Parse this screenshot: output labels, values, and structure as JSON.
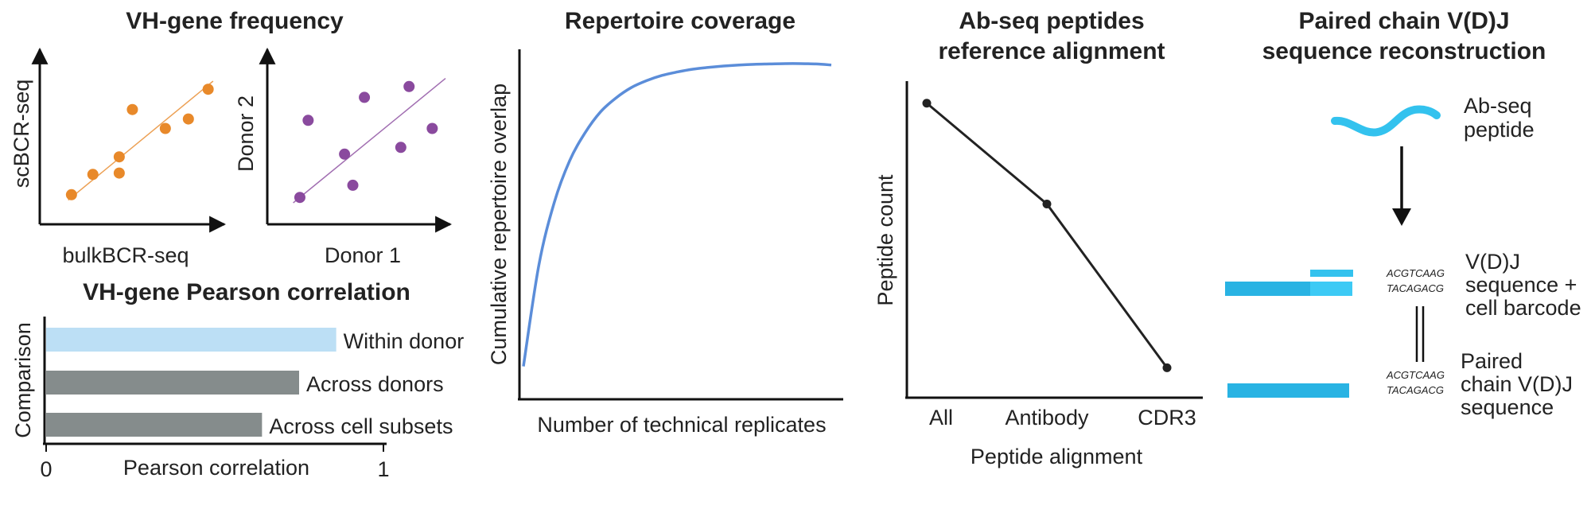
{
  "chart_data": [
    {
      "type": "scatter",
      "panel_title": "VH-gene frequency",
      "xlabel": "bulkBCR-seq",
      "ylabel": "scBCR-seq",
      "color": "#e8892a",
      "points": [
        [
          0.12,
          0.06
        ],
        [
          0.25,
          0.21
        ],
        [
          0.41,
          0.22
        ],
        [
          0.41,
          0.34
        ],
        [
          0.49,
          0.69
        ],
        [
          0.69,
          0.55
        ],
        [
          0.83,
          0.62
        ],
        [
          0.95,
          0.84
        ]
      ],
      "trend": [
        [
          0.1,
          0.02
        ],
        [
          0.98,
          0.9
        ]
      ]
    },
    {
      "type": "scatter",
      "xlabel": "Donor 1",
      "ylabel": "Donor 2",
      "color": "#8a4a9e",
      "points": [
        [
          0.12,
          0.04
        ],
        [
          0.17,
          0.61
        ],
        [
          0.39,
          0.36
        ],
        [
          0.44,
          0.13
        ],
        [
          0.51,
          0.78
        ],
        [
          0.73,
          0.41
        ],
        [
          0.78,
          0.86
        ],
        [
          0.92,
          0.55
        ]
      ],
      "trend": [
        [
          0.08,
          0.0
        ],
        [
          1.0,
          0.92
        ]
      ]
    },
    {
      "type": "bar",
      "title": "VH-gene Pearson correlation",
      "ylabel": "Comparison",
      "xlabel": "Pearson correlation",
      "xlim": [
        0,
        1
      ],
      "xticks": [
        "0",
        "1"
      ],
      "categories": [
        "Within donor",
        "Across donors",
        "Across cell subsets"
      ],
      "values": [
        0.86,
        0.75,
        0.64
      ],
      "colors": [
        "#bcdff5",
        "#858c8c",
        "#858c8c"
      ]
    },
    {
      "type": "line",
      "title": "Repertoire coverage",
      "xlabel": "Number of technical replicates",
      "ylabel": "Cumulative repertoire overlap",
      "color": "#5b8dd9",
      "x": [
        0,
        0.05,
        0.1,
        0.15,
        0.2,
        0.25,
        0.3,
        0.35,
        0.4,
        0.45,
        0.5,
        0.55,
        0.6,
        0.65,
        0.7,
        0.75,
        0.8,
        0.85,
        0.9,
        0.95,
        1.0
      ],
      "y": [
        0.09,
        0.38,
        0.56,
        0.68,
        0.76,
        0.82,
        0.86,
        0.89,
        0.91,
        0.925,
        0.935,
        0.943,
        0.948,
        0.952,
        0.955,
        0.957,
        0.958,
        0.959,
        0.959,
        0.958,
        0.955
      ]
    },
    {
      "type": "line",
      "title": "Ab-seq peptides reference alignment",
      "xlabel": "Peptide alignment",
      "ylabel": "Peptide count",
      "categories": [
        "All",
        "Antibody",
        "CDR3"
      ],
      "values": [
        0.93,
        0.61,
        0.09
      ]
    }
  ],
  "pairing_panel": {
    "title_line1": "Paired chain V(D)J",
    "title_line2": "sequence reconstruction",
    "peptide_label_line1": "Ab-seq",
    "peptide_label_line2": "peptide",
    "seq_top": "ACGTCAAG",
    "seq_bottom": "TACAGACG",
    "vdj_label_line1": "V(D)J",
    "vdj_label_line2": "sequence +",
    "vdj_label_line3": "cell barcode",
    "paired_label_line1": "Paired",
    "paired_label_line2": "chain V(D)J",
    "paired_label_line3": "sequence",
    "peptide_color": "#33c2ee",
    "read_color": "#29b3e3",
    "overlap_color": "#3dcaf5"
  }
}
